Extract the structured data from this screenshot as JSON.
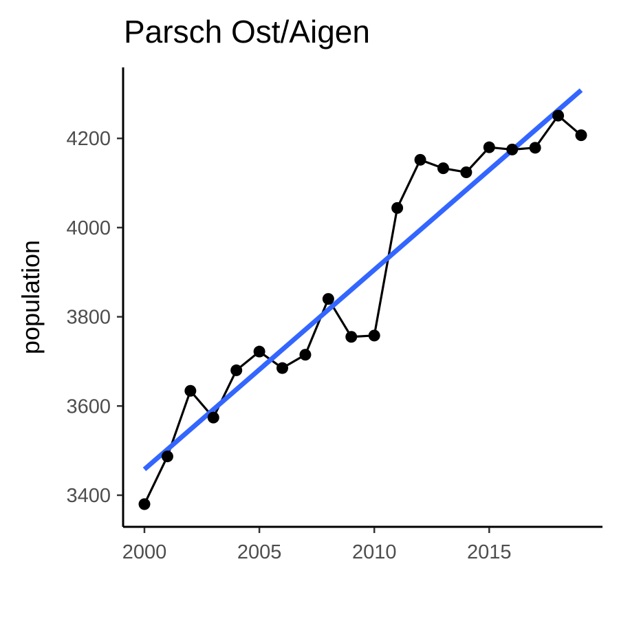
{
  "chart_data": {
    "type": "line",
    "title": "Parsch Ost/Aigen",
    "xlabel": "",
    "ylabel": "population",
    "x": [
      2000,
      2001,
      2002,
      2003,
      2004,
      2005,
      2006,
      2007,
      2008,
      2009,
      2010,
      2011,
      2012,
      2013,
      2014,
      2015,
      2016,
      2017,
      2018,
      2019
    ],
    "series": [
      {
        "values": [
          3380,
          3487,
          3634,
          3574,
          3680,
          3722,
          3685,
          3715,
          3840,
          3755,
          3758,
          4044,
          4152,
          4133,
          4124,
          4180,
          4175,
          4179,
          4251,
          4207
        ],
        "color": "#000000",
        "markers": true
      }
    ],
    "trend_line": {
      "x": [
        2000,
        2019
      ],
      "y": [
        3458,
        4308
      ],
      "color": "#3366ff"
    },
    "x_ticks": [
      2000,
      2005,
      2010,
      2015
    ],
    "y_ticks": [
      3400,
      3600,
      3800,
      4000,
      4200
    ],
    "xlim": [
      1999.1,
      2020
    ],
    "ylim": [
      3333,
      4348
    ],
    "grid": false,
    "legend": "none"
  }
}
